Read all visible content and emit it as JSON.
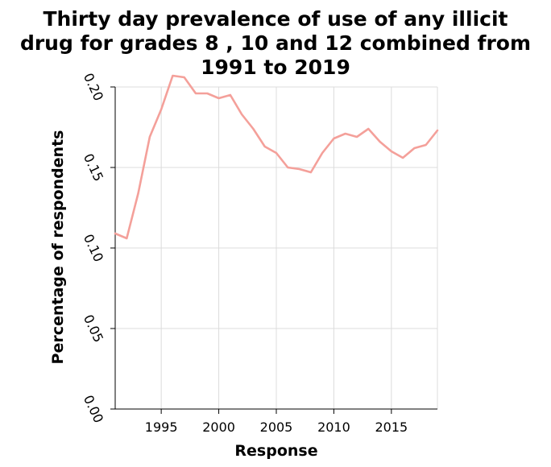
{
  "chart_data": {
    "type": "line",
    "title_lines": [
      "Thirty day prevalence of use of any illicit",
      "drug for grades 8 , 10 and 12 combined from",
      "1991 to 2019"
    ],
    "xlabel": "Response",
    "ylabel": "Percentage of respondents",
    "xlim": [
      1991,
      2019
    ],
    "ylim": [
      0.0,
      0.2
    ],
    "x_ticks": [
      1995,
      2000,
      2005,
      2010,
      2015
    ],
    "x_tick_labels": [
      "1995",
      "2000",
      "2005",
      "2010",
      "2015"
    ],
    "y_ticks": [
      0.0,
      0.05,
      0.1,
      0.15,
      0.2
    ],
    "y_tick_labels": [
      "0.00",
      "0.05",
      "0.10",
      "0.15",
      "0.20"
    ],
    "grid": true,
    "line_color": "#f4a09a",
    "series": [
      {
        "x": [
          1991,
          1992,
          1993,
          1994,
          1995,
          1996,
          1997,
          1998,
          1999,
          2000,
          2001,
          2002,
          2003,
          2004,
          2005,
          2006,
          2007,
          2008,
          2009,
          2010,
          2011,
          2012,
          2013,
          2014,
          2015,
          2016,
          2017,
          2018,
          2019
        ],
        "values": [
          0.109,
          0.106,
          0.134,
          0.169,
          0.186,
          0.207,
          0.206,
          0.196,
          0.196,
          0.193,
          0.195,
          0.183,
          0.174,
          0.163,
          0.159,
          0.15,
          0.149,
          0.147,
          0.159,
          0.168,
          0.171,
          0.169,
          0.174,
          0.166,
          0.16,
          0.156,
          0.162,
          0.164,
          0.173
        ]
      }
    ]
  }
}
